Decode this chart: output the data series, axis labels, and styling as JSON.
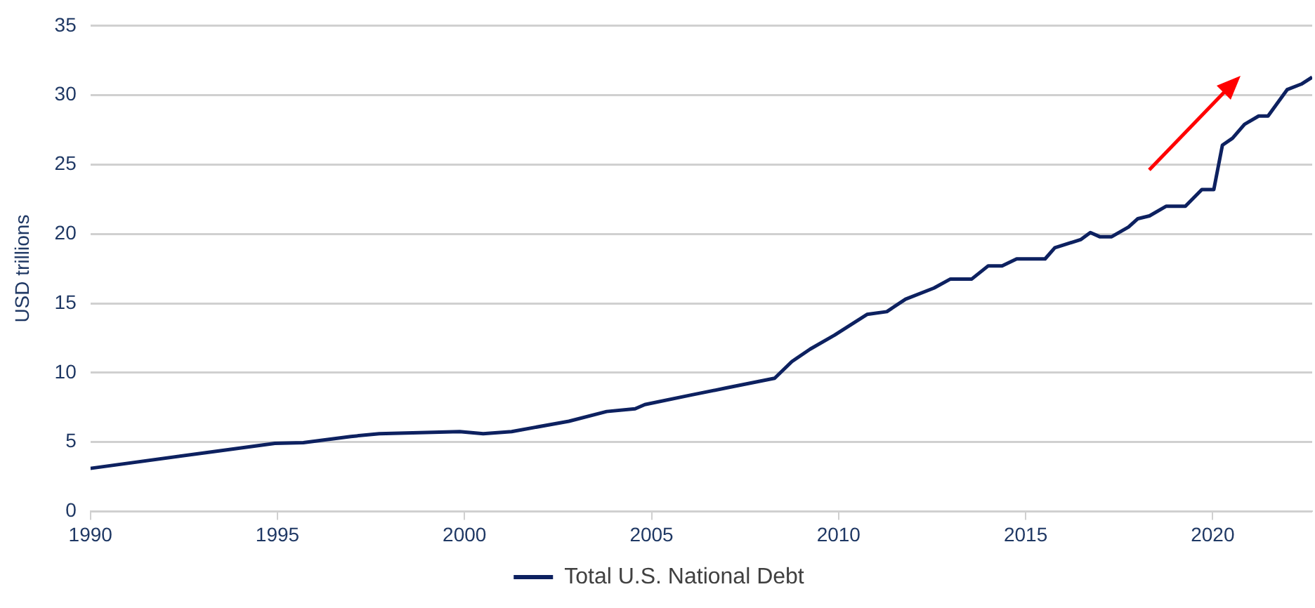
{
  "chart_data": {
    "type": "line",
    "ylabel": "USD trillions",
    "x": [
      1990,
      1993.54,
      1994.93,
      1995.69,
      1996.96,
      1997.72,
      1999.87,
      2000.5,
      2001.26,
      2002.79,
      2003.8,
      2004.56,
      2004.82,
      2006.08,
      2007,
      2008.29,
      2008.75,
      2009.24,
      2009.89,
      2010.76,
      2011.29,
      2011.79,
      2012.55,
      2012.99,
      2013.56,
      2014.0,
      2014.37,
      2014.76,
      2015.52,
      2015.78,
      2016.48,
      2016.73,
      2016.98,
      2017.3,
      2017.75,
      2018.0,
      2018.31,
      2018.76,
      2019.27,
      2019.71,
      2020.03,
      2020.26,
      2020.53,
      2020.85,
      2021.23,
      2021.48,
      2021.99,
      2022.37,
      2022.66
    ],
    "series": [
      {
        "name": "Total U.S. National Debt",
        "color": "#0d2160",
        "values": [
          3.1,
          4.4,
          4.9,
          4.95,
          5.4,
          5.6,
          5.75,
          5.6,
          5.75,
          6.5,
          7.2,
          7.4,
          7.7,
          8.4,
          8.9,
          9.6,
          10.8,
          11.7,
          12.7,
          14.2,
          14.4,
          15.3,
          16.1,
          16.75,
          16.75,
          17.7,
          17.7,
          18.2,
          18.2,
          19.0,
          19.6,
          20.1,
          19.8,
          19.8,
          20.5,
          21.1,
          21.3,
          22.0,
          22.0,
          23.2,
          23.2,
          26.4,
          26.9,
          27.9,
          28.5,
          28.5,
          30.4,
          30.8,
          31.3
        ]
      }
    ],
    "xlim": [
      1990,
      2022.66
    ],
    "xticks": [
      1990,
      1995,
      2000,
      2005,
      2010,
      2015,
      2020
    ],
    "ylim": [
      0,
      35
    ],
    "yticks": [
      0,
      5,
      10,
      15,
      20,
      25,
      30,
      35
    ],
    "grid": "y",
    "legend": "bottom",
    "marker": "none",
    "line_style": "solid"
  }
}
